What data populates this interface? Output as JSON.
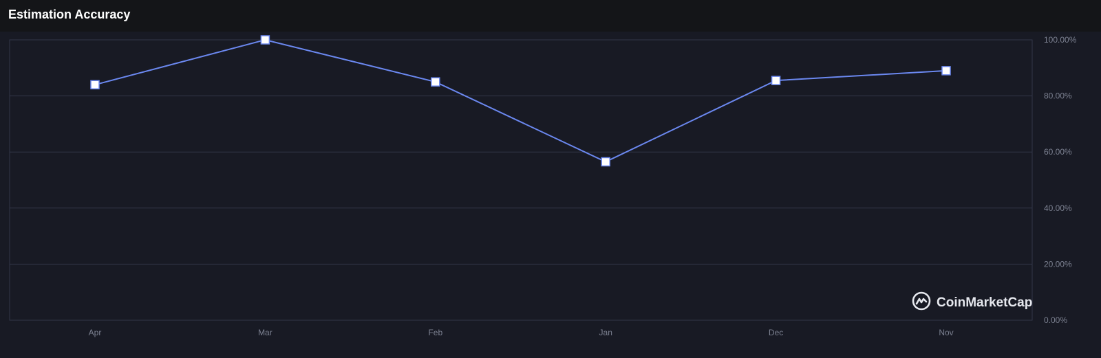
{
  "header": {
    "title": "Estimation Accuracy"
  },
  "watermark": {
    "brand": "CoinMarketCap",
    "icon": "coinmarketcap-logo-icon"
  },
  "colors": {
    "background": "#181a24",
    "header_background": "#141518",
    "line": "#6b88f0",
    "grid": "#323648",
    "tick_text": "#7c8191",
    "marker_fill": "#ffffff"
  },
  "chart_data": {
    "type": "line",
    "title": "Estimation Accuracy",
    "categories": [
      "Apr",
      "Mar",
      "Feb",
      "Jan",
      "Dec",
      "Nov"
    ],
    "series": [
      {
        "values": [
          84,
          100,
          85,
          56.5,
          85.5,
          89
        ]
      }
    ],
    "y_axis": {
      "position": "right",
      "ylim": [
        0,
        100
      ],
      "ticks": [
        100,
        80,
        60,
        40,
        20,
        0
      ],
      "tick_labels": [
        "100.00%",
        "80.00%",
        "60.00%",
        "40.00%",
        "20.00%",
        "0.00%"
      ]
    },
    "grid": true,
    "legend": "none"
  }
}
